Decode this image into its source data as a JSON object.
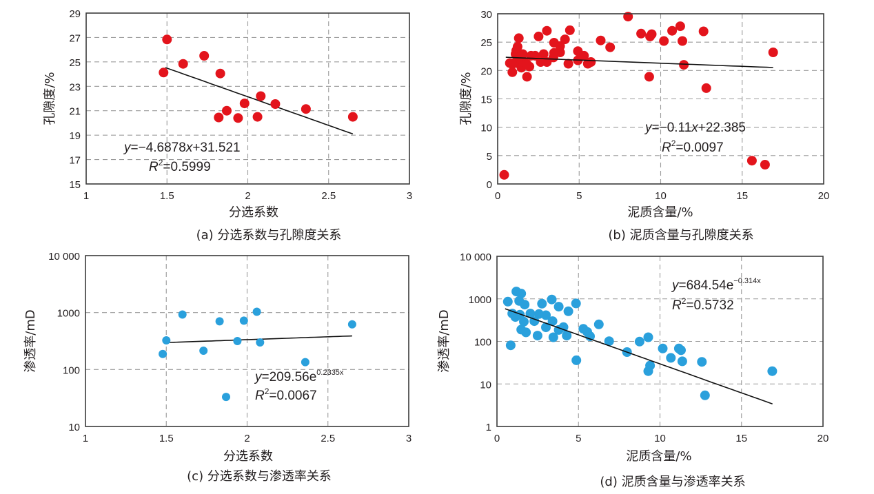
{
  "colors": {
    "red_point": "#e3141c",
    "blue_point": "#2aa0dc",
    "trend_line": "#111111",
    "grid": "#9a9a9a"
  },
  "chart_data": [
    {
      "id": "a",
      "type": "scatter",
      "caption": "(a) 分选系数与孔隙度关系",
      "xlabel": "分选系数",
      "ylabel": "孔隙度/%",
      "xlim": [
        1,
        3
      ],
      "ylim": [
        15,
        29
      ],
      "yscale": "linear",
      "xticks": [
        1,
        1.5,
        2,
        2.5,
        3
      ],
      "xtick_labels": [
        "1",
        "1.5",
        "2",
        "2.5",
        "3"
      ],
      "yticks": [
        15,
        17,
        19,
        21,
        23,
        25,
        27,
        29
      ],
      "ytick_labels": [
        "15",
        "17",
        "19",
        "21",
        "23",
        "25",
        "27",
        "29"
      ],
      "grid": true,
      "point_color": "red",
      "points": [
        [
          1.5,
          26.84
        ],
        [
          1.479,
          24.13
        ],
        [
          1.6,
          24.84
        ],
        [
          1.73,
          25.5
        ],
        [
          1.83,
          24.05
        ],
        [
          1.82,
          20.45
        ],
        [
          1.87,
          21.0
        ],
        [
          1.94,
          20.4
        ],
        [
          1.98,
          21.6
        ],
        [
          2.06,
          20.5
        ],
        [
          2.08,
          22.2
        ],
        [
          2.17,
          21.55
        ],
        [
          2.36,
          21.14
        ],
        [
          2.65,
          20.5
        ]
      ],
      "trend": {
        "type": "linear",
        "a": -4.6878,
        "b": 31.521,
        "x_range": [
          1.49,
          2.65
        ]
      },
      "equation": {
        "prefix": "y",
        "body": "=−4.6878",
        "var": "x",
        "tail": "+31.521",
        "sup": ""
      },
      "r2": {
        "label": "R",
        "sup": "2",
        "value": "=0.5999"
      },
      "annotation_position": "bottom-left"
    },
    {
      "id": "b",
      "type": "scatter",
      "caption": "(b) 泥质含量与孔隙度关系",
      "xlabel": "泥质含量/%",
      "ylabel": "孔隙度/%",
      "xlim": [
        0,
        20
      ],
      "ylim": [
        0,
        30
      ],
      "yscale": "linear",
      "xticks": [
        0,
        5,
        10,
        15,
        20
      ],
      "xtick_labels": [
        "0",
        "5",
        "10",
        "15",
        "20"
      ],
      "yticks": [
        0,
        5,
        10,
        15,
        20,
        25,
        30
      ],
      "ytick_labels": [
        "0",
        "5",
        "10",
        "15",
        "20",
        "25",
        "30"
      ],
      "grid": true,
      "point_color": "red",
      "points": [
        [
          0.4,
          1.6
        ],
        [
          8.0,
          29.5
        ],
        [
          8.8,
          26.5
        ],
        [
          9.35,
          26.0
        ],
        [
          9.45,
          26.4
        ],
        [
          9.3,
          18.9
        ],
        [
          10.2,
          25.2
        ],
        [
          10.7,
          27.0
        ],
        [
          11.2,
          27.8
        ],
        [
          11.33,
          25.2
        ],
        [
          11.42,
          21.0
        ],
        [
          12.63,
          26.9
        ],
        [
          12.8,
          16.9
        ],
        [
          15.6,
          4.1
        ],
        [
          16.4,
          3.4
        ],
        [
          16.9,
          23.2
        ],
        [
          6.32,
          25.3
        ],
        [
          6.9,
          24.1
        ],
        [
          4.92,
          23.4
        ],
        [
          4.92,
          21.8
        ],
        [
          5.3,
          22.6
        ],
        [
          5.53,
          21.2
        ],
        [
          5.72,
          21.5
        ],
        [
          4.34,
          21.2
        ],
        [
          4.43,
          27.1
        ],
        [
          4.13,
          25.5
        ],
        [
          3.83,
          24.3
        ],
        [
          3.83,
          23.2
        ],
        [
          3.46,
          24.9
        ],
        [
          3.46,
          23.1
        ],
        [
          3.42,
          22.3
        ],
        [
          3.02,
          27.0
        ],
        [
          3.02,
          21.5
        ],
        [
          2.82,
          22.9
        ],
        [
          2.64,
          21.5
        ],
        [
          2.51,
          26.0
        ],
        [
          2.3,
          22.6
        ],
        [
          2.05,
          22.6
        ],
        [
          1.8,
          18.9
        ],
        [
          1.95,
          20.7
        ],
        [
          1.54,
          22.9
        ],
        [
          1.3,
          25.7
        ],
        [
          1.22,
          24.2
        ],
        [
          1.1,
          22.9
        ],
        [
          0.9,
          19.7
        ],
        [
          0.75,
          21.3
        ],
        [
          0.98,
          21.3
        ],
        [
          1.22,
          21.9
        ],
        [
          1.38,
          21.0
        ],
        [
          1.46,
          20.5
        ],
        [
          1.62,
          21.5
        ],
        [
          1.8,
          21.1
        ],
        [
          1.14,
          23.5
        ],
        [
          1.38,
          22.5
        ],
        [
          0.9,
          21.1
        ]
      ],
      "trend": {
        "type": "linear",
        "a": -0.11,
        "b": 22.385,
        "x_range": [
          0.5,
          16.9
        ]
      },
      "equation": {
        "prefix": "y",
        "body": "=−0.11",
        "var": "x",
        "tail": "+22.385",
        "sup": ""
      },
      "r2": {
        "label": "R",
        "sup": "2",
        "value": "=0.0097"
      },
      "annotation_position": "center-right"
    },
    {
      "id": "c",
      "type": "scatter",
      "caption": "(c) 分选系数与渗透率关系",
      "xlabel": "分选系数",
      "ylabel": "渗透率/mD",
      "xlim": [
        1,
        3
      ],
      "ylim": [
        10,
        10000
      ],
      "yscale": "log",
      "xticks": [
        1,
        1.5,
        2,
        2.5,
        3
      ],
      "xtick_labels": [
        "1",
        "1.5",
        "2",
        "2.5",
        "3"
      ],
      "yticks": [
        10,
        100,
        1000,
        10000
      ],
      "ytick_labels": [
        "10",
        "100",
        "1000",
        "10 000"
      ],
      "grid": true,
      "point_color": "blue",
      "points": [
        [
          1.478,
          188
        ],
        [
          1.5,
          325
        ],
        [
          1.6,
          925
        ],
        [
          1.73,
          214
        ],
        [
          1.83,
          702
        ],
        [
          1.87,
          33
        ],
        [
          1.94,
          316
        ],
        [
          1.98,
          721
        ],
        [
          2.06,
          1033
        ],
        [
          2.08,
          299
        ],
        [
          2.36,
          135
        ],
        [
          2.65,
          621
        ]
      ],
      "trend": {
        "type": "exponential",
        "a": 209.56,
        "b": 0.2335,
        "x_range": [
          1.49,
          2.65
        ]
      },
      "equation": {
        "prefix": "y",
        "body": "=209.56e",
        "var": "",
        "tail": "",
        "sup": "0.2335x"
      },
      "r2": {
        "label": "R",
        "sup": "2",
        "value": "=0.0067"
      },
      "annotation_position": "center"
    },
    {
      "id": "d",
      "type": "scatter",
      "caption": "(d) 泥质含量与渗透率关系",
      "xlabel": "泥质含量/%",
      "ylabel": "渗透率/mD",
      "xlim": [
        0,
        20
      ],
      "ylim": [
        1,
        10000
      ],
      "yscale": "log",
      "xticks": [
        0,
        5,
        10,
        15,
        20
      ],
      "xtick_labels": [
        "0",
        "5",
        "10",
        "15",
        "20"
      ],
      "yticks": [
        1,
        10,
        100,
        1000,
        10000
      ],
      "ytick_labels": [
        "1",
        "10",
        "100",
        "1000",
        "10 000"
      ],
      "grid": true,
      "point_color": "blue",
      "points": [
        [
          0.84,
          81
        ],
        [
          0.67,
          861
        ],
        [
          1.19,
          1489
        ],
        [
          1.49,
          1331
        ],
        [
          1.36,
          893
        ],
        [
          1.7,
          733
        ],
        [
          0.94,
          451
        ],
        [
          1.13,
          374
        ],
        [
          1.41,
          424
        ],
        [
          1.65,
          292
        ],
        [
          1.49,
          189
        ],
        [
          1.78,
          163
        ],
        [
          2.05,
          451
        ],
        [
          2.29,
          299
        ],
        [
          2.49,
          137
        ],
        [
          2.58,
          440
        ],
        [
          2.76,
          770
        ],
        [
          3.0,
          413
        ],
        [
          3.0,
          214
        ],
        [
          3.36,
          964
        ],
        [
          3.41,
          299
        ],
        [
          3.46,
          125
        ],
        [
          3.79,
          655
        ],
        [
          3.79,
          186
        ],
        [
          4.08,
          216
        ],
        [
          4.28,
          137
        ],
        [
          4.38,
          511
        ],
        [
          4.85,
          780
        ],
        [
          4.87,
          36
        ],
        [
          5.3,
          198
        ],
        [
          5.54,
          167
        ],
        [
          5.71,
          132
        ],
        [
          6.25,
          251
        ],
        [
          6.88,
          101
        ],
        [
          7.98,
          56
        ],
        [
          8.75,
          99
        ],
        [
          9.28,
          125
        ],
        [
          9.28,
          20
        ],
        [
          9.39,
          27
        ],
        [
          10.17,
          68
        ],
        [
          10.67,
          41
        ],
        [
          11.16,
          68
        ],
        [
          11.29,
          62
        ],
        [
          11.37,
          34
        ],
        [
          12.57,
          33
        ],
        [
          12.76,
          5.4
        ],
        [
          16.89,
          20
        ]
      ],
      "trend": {
        "type": "exponential",
        "a": 684.54,
        "b": -0.314,
        "x_range": [
          0.5,
          16.9
        ]
      },
      "equation": {
        "prefix": "y",
        "body": "=684.54e",
        "var": "",
        "tail": "",
        "sup": "−0.314x"
      },
      "r2": {
        "label": "R",
        "sup": "2",
        "value": "=0.5732"
      },
      "annotation_position": "top-right"
    }
  ]
}
